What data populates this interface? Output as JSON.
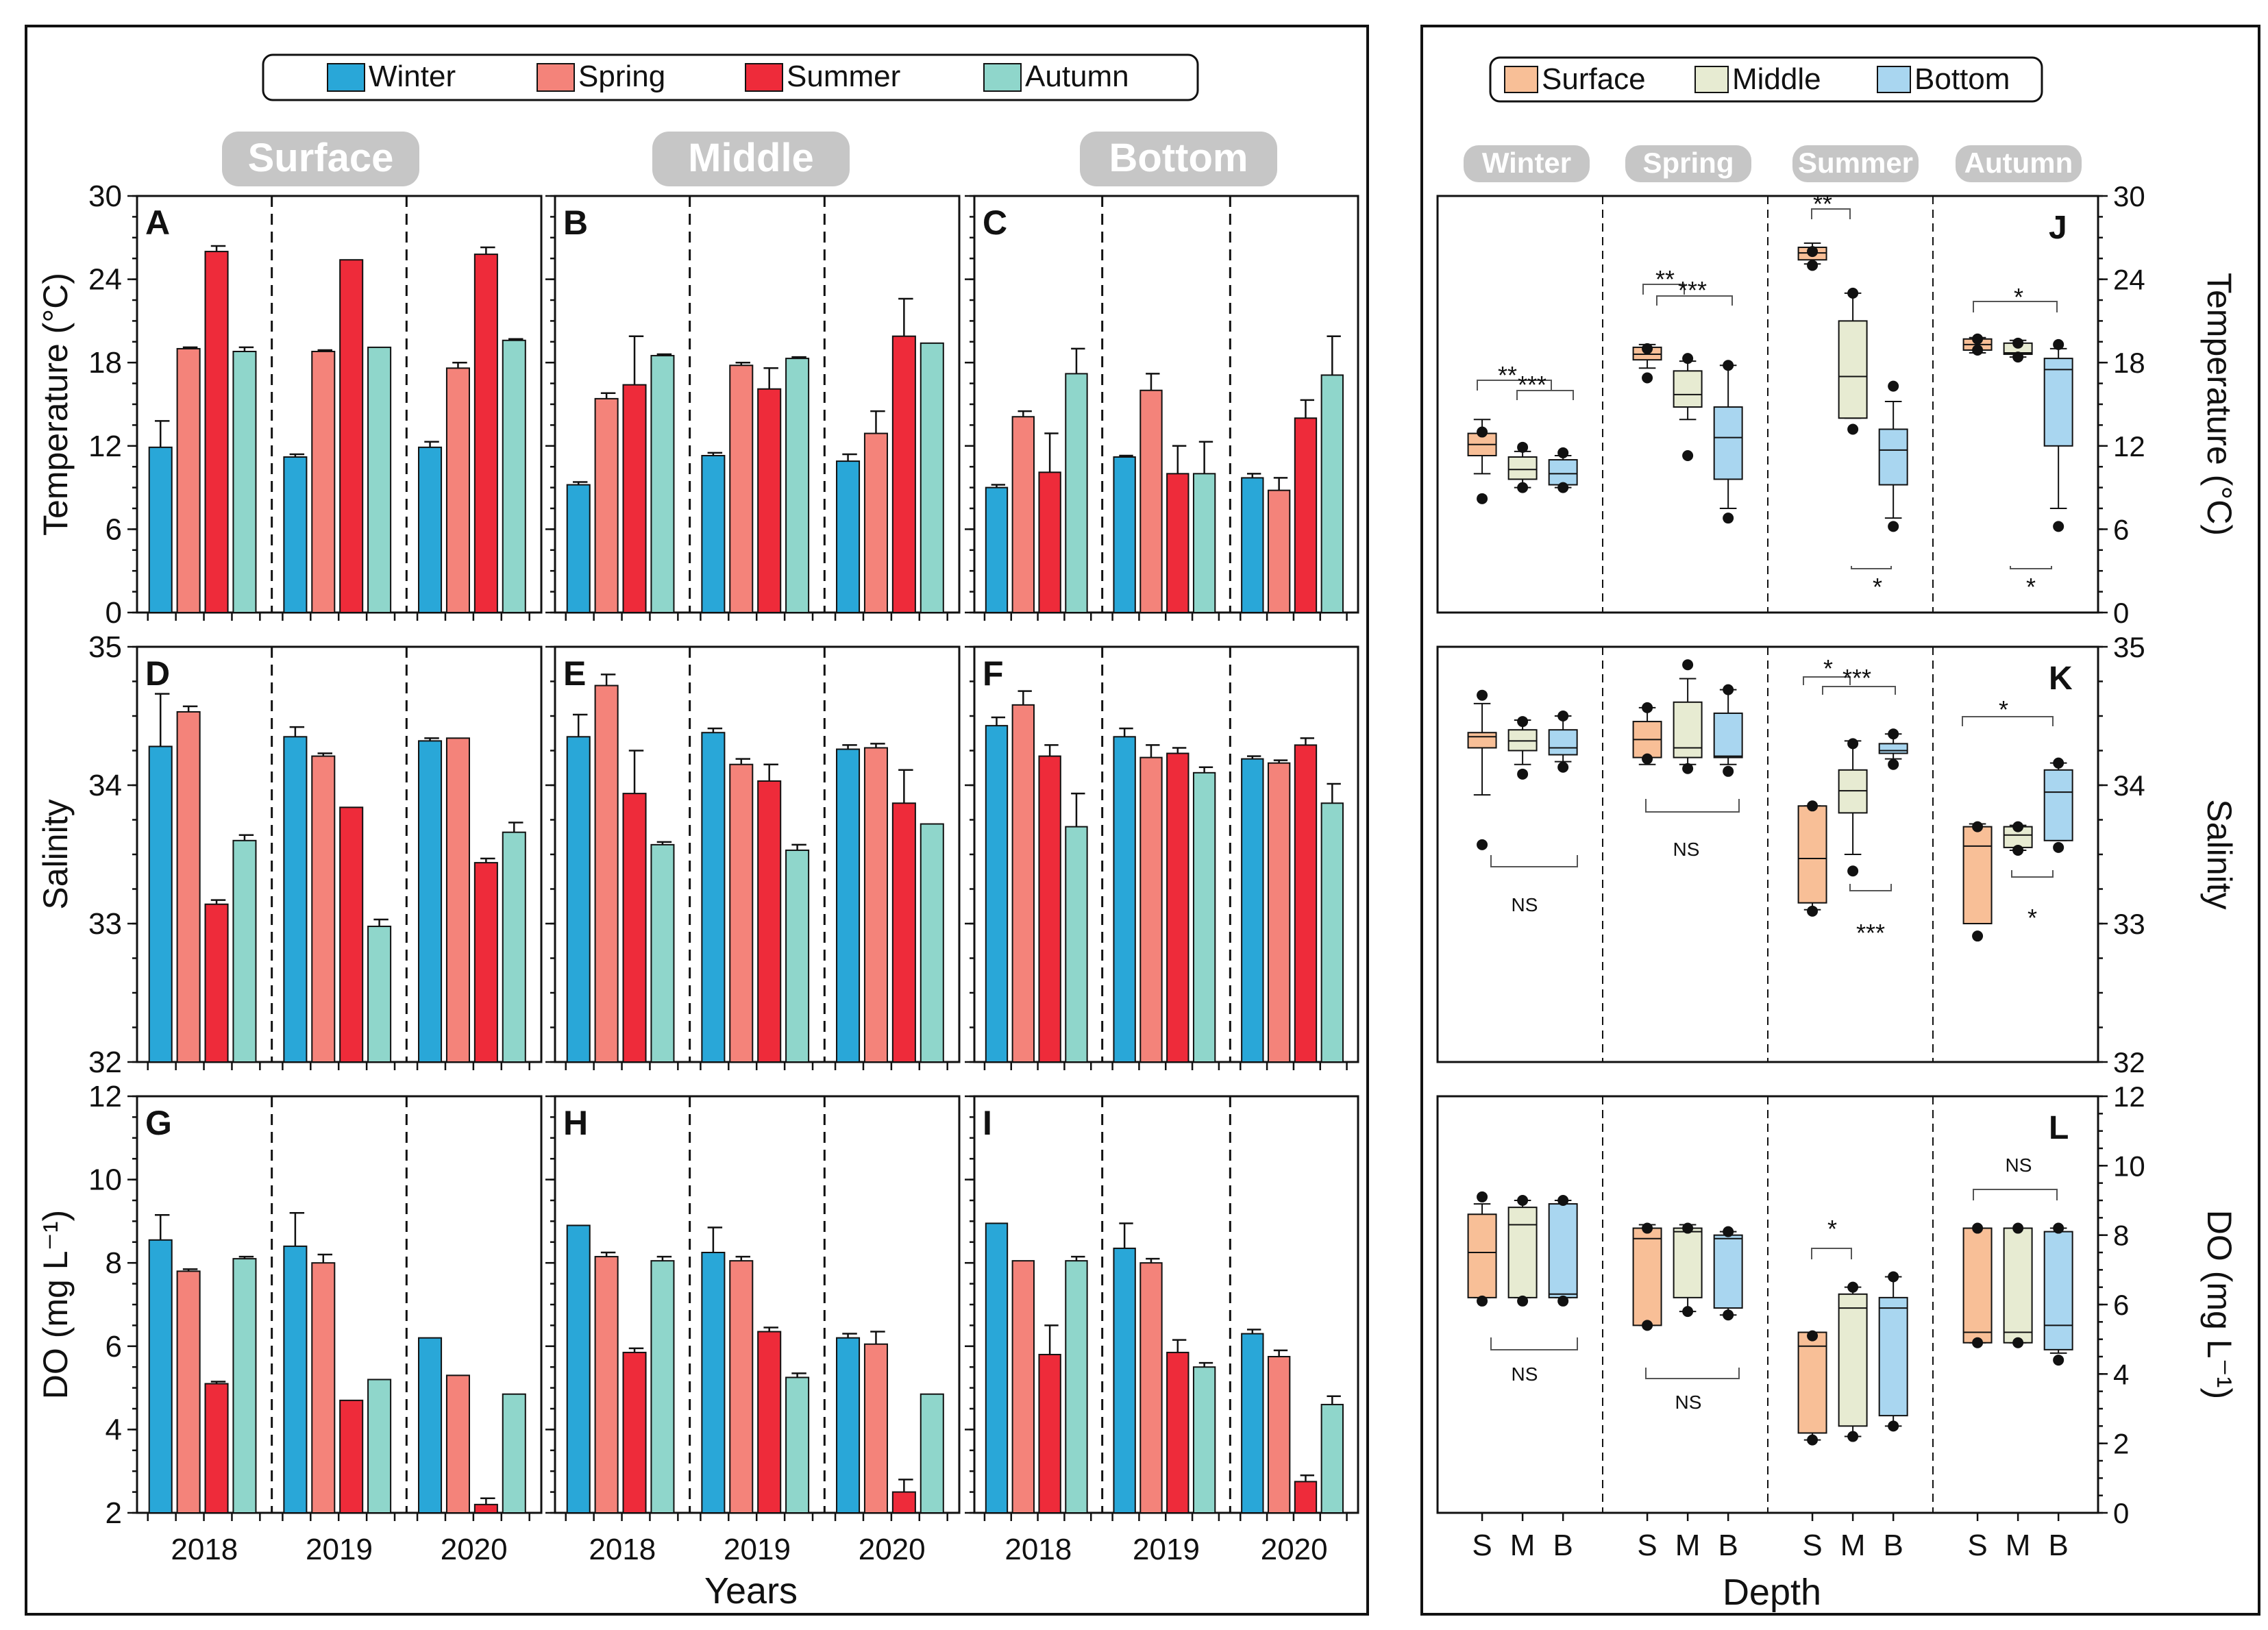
{
  "colors": {
    "Winter": "#29a7d8",
    "Spring": "#f4837a",
    "Summer": "#ee2b3a",
    "Autumn": "#8fd6cb",
    "Surface": "#f8bf97",
    "Middle": "#e7ebd2",
    "Bottom": "#a9d6f0",
    "pill": "#c6c6c6"
  },
  "legend_left": [
    "Winter",
    "Spring",
    "Summer",
    "Autumn"
  ],
  "legend_right": [
    "Surface",
    "Middle",
    "Bottom"
  ],
  "depth_titles": [
    "Surface",
    "Middle",
    "Bottom"
  ],
  "season_titles": [
    "Winter",
    "Spring",
    "Summer",
    "Autumn"
  ],
  "x_label_left": "Years",
  "x_label_right": "Depth",
  "years": [
    "2018",
    "2019",
    "2020"
  ],
  "depth_ticks": [
    "S",
    "M",
    "B"
  ],
  "chart_data": [
    {
      "type": "bar",
      "row": "Temperature",
      "ylabel": "Temperature (°C)",
      "ylim": [
        0,
        30
      ],
      "yticks": [
        0,
        6,
        12,
        18,
        24,
        30
      ],
      "panels": [
        {
          "letter": "A",
          "depth": "Surface",
          "values": [
            [
              11.9,
              19.0,
              26.0,
              18.8
            ],
            [
              11.2,
              18.8,
              25.4,
              19.1
            ],
            [
              11.9,
              17.6,
              25.8,
              19.6
            ]
          ],
          "errors": [
            [
              1.9,
              0.1,
              0.4,
              0.3
            ],
            [
              0.2,
              0.1,
              0,
              0
            ],
            [
              0.4,
              0.4,
              0.5,
              0.1
            ]
          ]
        },
        {
          "letter": "B",
          "depth": "Middle",
          "values": [
            [
              9.2,
              15.4,
              16.4,
              18.5
            ],
            [
              11.3,
              17.8,
              16.1,
              18.3
            ],
            [
              10.9,
              12.9,
              19.9,
              19.4
            ]
          ],
          "errors": [
            [
              0.2,
              0.4,
              3.5,
              0.1
            ],
            [
              0.2,
              0.2,
              1.5,
              0.1
            ],
            [
              0.5,
              1.6,
              2.7,
              0
            ]
          ]
        },
        {
          "letter": "C",
          "depth": "Bottom",
          "values": [
            [
              9.0,
              14.1,
              10.1,
              17.2
            ],
            [
              11.2,
              16.0,
              10.0,
              10.0
            ],
            [
              9.7,
              8.8,
              14.0,
              17.1
            ]
          ],
          "errors": [
            [
              0.2,
              0.4,
              2.8,
              1.8
            ],
            [
              0.1,
              1.2,
              2.0,
              2.3
            ],
            [
              0.3,
              0.9,
              1.3,
              2.8
            ]
          ]
        }
      ]
    },
    {
      "type": "bar",
      "row": "Salinity",
      "ylabel": "Salinity",
      "ylim": [
        32,
        35
      ],
      "yticks": [
        32,
        33,
        34,
        35
      ],
      "panels": [
        {
          "letter": "D",
          "depth": "Surface",
          "values": [
            [
              34.28,
              34.53,
              33.14,
              33.6
            ],
            [
              34.35,
              34.21,
              33.84,
              32.98
            ],
            [
              34.32,
              34.34,
              33.44,
              33.66
            ]
          ],
          "errors": [
            [
              0.38,
              0.04,
              0.03,
              0.04
            ],
            [
              0.07,
              0.02,
              0,
              0.05
            ],
            [
              0.02,
              0,
              0.03,
              0.07
            ]
          ]
        },
        {
          "letter": "E",
          "depth": "Middle",
          "values": [
            [
              34.35,
              34.72,
              33.94,
              33.57
            ],
            [
              34.38,
              34.15,
              34.03,
              33.53
            ],
            [
              34.26,
              34.27,
              33.87,
              33.72
            ]
          ],
          "errors": [
            [
              0.16,
              0.08,
              0.31,
              0.02
            ],
            [
              0.03,
              0.04,
              0.12,
              0.04
            ],
            [
              0.03,
              0.03,
              0.24,
              0
            ]
          ]
        },
        {
          "letter": "F",
          "depth": "Bottom",
          "values": [
            [
              34.43,
              34.58,
              34.21,
              33.7
            ],
            [
              34.35,
              34.2,
              34.23,
              34.09
            ],
            [
              34.19,
              34.16,
              34.29,
              33.87
            ]
          ],
          "errors": [
            [
              0.06,
              0.1,
              0.08,
              0.24
            ],
            [
              0.06,
              0.09,
              0.04,
              0.04
            ],
            [
              0.02,
              0.02,
              0.05,
              0.14
            ]
          ]
        }
      ]
    },
    {
      "type": "bar",
      "row": "DO",
      "ylabel": "DO (mg L⁻¹)",
      "ylim": [
        2,
        12
      ],
      "yticks": [
        2,
        4,
        6,
        8,
        10,
        12
      ],
      "panels": [
        {
          "letter": "G",
          "depth": "Surface",
          "values": [
            [
              8.55,
              7.8,
              5.1,
              8.1
            ],
            [
              8.4,
              8.0,
              4.7,
              5.2
            ],
            [
              6.2,
              5.3,
              2.2,
              4.85
            ]
          ],
          "errors": [
            [
              0.6,
              0.05,
              0.05,
              0.05
            ],
            [
              0.8,
              0.2,
              0,
              0
            ],
            [
              0,
              0,
              0.15,
              0
            ]
          ]
        },
        {
          "letter": "H",
          "depth": "Middle",
          "values": [
            [
              8.9,
              8.15,
              5.85,
              8.05
            ],
            [
              8.25,
              8.05,
              6.35,
              5.25
            ],
            [
              6.2,
              6.05,
              2.5,
              4.85
            ]
          ],
          "errors": [
            [
              0,
              0.1,
              0.1,
              0.1
            ],
            [
              0.6,
              0.1,
              0.1,
              0.1
            ],
            [
              0.1,
              0.3,
              0.3,
              0
            ]
          ]
        },
        {
          "letter": "I",
          "depth": "Bottom",
          "values": [
            [
              8.95,
              8.05,
              5.8,
              8.05
            ],
            [
              8.35,
              8.0,
              5.85,
              5.5
            ],
            [
              6.3,
              5.75,
              2.75,
              4.6
            ]
          ],
          "errors": [
            [
              0,
              0,
              0.7,
              0.1
            ],
            [
              0.6,
              0.1,
              0.3,
              0.1
            ],
            [
              0.1,
              0.15,
              0.15,
              0.2
            ]
          ]
        }
      ]
    },
    {
      "type": "box",
      "row": "Temperature",
      "panel": "J",
      "ylabel": "Temperature (°C)",
      "ylim": [
        0,
        30
      ],
      "yticks": [
        0,
        6,
        12,
        18,
        24,
        30
      ],
      "groups": [
        {
          "season": "Winter",
          "boxes": [
            [
              10.0,
              11.3,
              12.1,
              12.9,
              13.9
            ],
            [
              9.0,
              9.6,
              10.3,
              11.2,
              11.6
            ],
            [
              9.0,
              9.2,
              10.0,
              11.0,
              11.3
            ]
          ],
          "outliers": [
            [
              8.2,
              13.0
            ],
            [
              9.0,
              11.9
            ],
            [
              9.0,
              11.5
            ]
          ]
        },
        {
          "season": "Spring",
          "boxes": [
            [
              17.6,
              18.2,
              18.6,
              19.1,
              19.3
            ],
            [
              13.9,
              14.8,
              15.7,
              17.4,
              18.1
            ],
            [
              7.5,
              9.6,
              12.6,
              14.8,
              17.8
            ]
          ],
          "outliers": [
            [
              16.9,
              19.0
            ],
            [
              11.3,
              18.3
            ],
            [
              6.8,
              17.8
            ]
          ]
        },
        {
          "season": "Summer",
          "boxes": [
            [
              25.1,
              25.4,
              25.9,
              26.3,
              26.6
            ],
            [
              14.0,
              14.0,
              17.0,
              21.0,
              23.0
            ],
            [
              6.8,
              9.2,
              11.7,
              13.2,
              15.2
            ]
          ],
          "outliers": [
            [
              25.0,
              26.0
            ],
            [
              13.2,
              23.0
            ],
            [
              6.2,
              16.3
            ]
          ]
        },
        {
          "season": "Autumn",
          "boxes": [
            [
              18.7,
              18.9,
              19.3,
              19.7,
              19.8
            ],
            [
              18.4,
              18.6,
              18.7,
              19.4,
              19.6
            ],
            [
              7.5,
              12.0,
              17.5,
              18.3,
              19.0
            ]
          ],
          "outliers": [
            [
              18.9,
              19.7
            ],
            [
              18.4,
              19.4
            ],
            [
              6.2,
              19.3
            ]
          ]
        }
      ],
      "annotations": [
        "**",
        "***",
        "**",
        "***",
        "**",
        "*",
        "*",
        "*"
      ]
    },
    {
      "type": "box",
      "row": "Salinity",
      "panel": "K",
      "ylabel": "Salinity",
      "ylim": [
        32,
        35
      ],
      "yticks": [
        32,
        33,
        34,
        35
      ],
      "groups": [
        {
          "season": "Winter",
          "boxes": [
            [
              33.93,
              34.27,
              34.35,
              34.38,
              34.59
            ],
            [
              34.15,
              34.25,
              34.32,
              34.4,
              34.47
            ],
            [
              34.17,
              34.22,
              34.27,
              34.4,
              34.5
            ]
          ],
          "outliers": [
            [
              33.57,
              34.65
            ],
            [
              34.08,
              34.46
            ],
            [
              34.13,
              34.5
            ]
          ]
        },
        {
          "season": "Spring",
          "boxes": [
            [
              34.15,
              34.2,
              34.33,
              34.46,
              34.56
            ],
            [
              34.15,
              34.2,
              34.27,
              34.6,
              34.77
            ],
            [
              34.15,
              34.2,
              34.21,
              34.52,
              34.69
            ]
          ],
          "outliers": [
            [
              34.19,
              34.56
            ],
            [
              34.12,
              34.87
            ],
            [
              34.1,
              34.69
            ]
          ]
        },
        {
          "season": "Summer",
          "boxes": [
            [
              33.1,
              33.15,
              33.47,
              33.85,
              33.85
            ],
            [
              33.5,
              33.8,
              33.96,
              34.11,
              34.32
            ],
            [
              34.19,
              34.23,
              34.25,
              34.3,
              34.37
            ]
          ],
          "outliers": [
            [
              33.09,
              33.85
            ],
            [
              33.38,
              34.3
            ],
            [
              34.15,
              34.37
            ]
          ]
        },
        {
          "season": "Autumn",
          "boxes": [
            [
              33.0,
              33.0,
              33.56,
              33.7,
              33.72
            ],
            [
              33.53,
              33.55,
              33.64,
              33.7,
              33.71
            ],
            [
              33.6,
              33.6,
              33.95,
              34.11,
              34.16
            ]
          ],
          "outliers": [
            [
              32.91,
              33.7
            ],
            [
              33.53,
              33.7
            ],
            [
              33.55,
              34.16
            ]
          ]
        }
      ],
      "annotations": [
        "NS",
        "NS",
        "*",
        "***",
        "*",
        "***",
        "*"
      ]
    },
    {
      "type": "box",
      "row": "DO",
      "panel": "L",
      "ylabel": "DO (mg L⁻¹)",
      "ylim": [
        0,
        12
      ],
      "yticks": [
        0,
        2,
        4,
        6,
        8,
        10,
        12
      ],
      "groups": [
        {
          "season": "Winter",
          "boxes": [
            [
              6.2,
              6.2,
              7.5,
              8.6,
              8.9
            ],
            [
              6.2,
              6.2,
              8.3,
              8.8,
              9.0
            ],
            [
              6.2,
              6.2,
              6.3,
              8.9,
              9.0
            ]
          ],
          "outliers": [
            [
              6.1,
              9.1
            ],
            [
              6.1,
              9.0
            ],
            [
              6.1,
              9.0
            ]
          ]
        },
        {
          "season": "Spring",
          "boxes": [
            [
              5.4,
              5.4,
              7.9,
              8.2,
              8.3
            ],
            [
              5.8,
              6.2,
              8.1,
              8.2,
              8.3
            ],
            [
              5.7,
              5.9,
              7.9,
              8.0,
              8.1
            ]
          ],
          "outliers": [
            [
              5.4,
              8.2
            ],
            [
              5.8,
              8.2
            ],
            [
              5.7,
              8.1
            ]
          ]
        },
        {
          "season": "Summer",
          "boxes": [
            [
              2.1,
              2.3,
              4.8,
              5.2,
              5.2
            ],
            [
              2.2,
              2.5,
              5.9,
              6.3,
              6.5
            ],
            [
              2.5,
              2.8,
              5.9,
              6.2,
              6.8
            ]
          ],
          "outliers": [
            [
              2.1,
              5.1
            ],
            [
              2.2,
              6.5
            ],
            [
              2.5,
              6.8
            ]
          ]
        },
        {
          "season": "Autumn",
          "boxes": [
            [
              4.9,
              4.9,
              5.2,
              8.2,
              8.2
            ],
            [
              4.9,
              4.9,
              5.2,
              8.2,
              8.2
            ],
            [
              4.6,
              4.7,
              5.4,
              8.1,
              8.2
            ]
          ],
          "outliers": [
            [
              4.9,
              8.2
            ],
            [
              4.9,
              8.2
            ],
            [
              4.4,
              8.2
            ]
          ]
        }
      ],
      "annotations": [
        "NS",
        "NS",
        "*",
        "NS"
      ]
    }
  ]
}
